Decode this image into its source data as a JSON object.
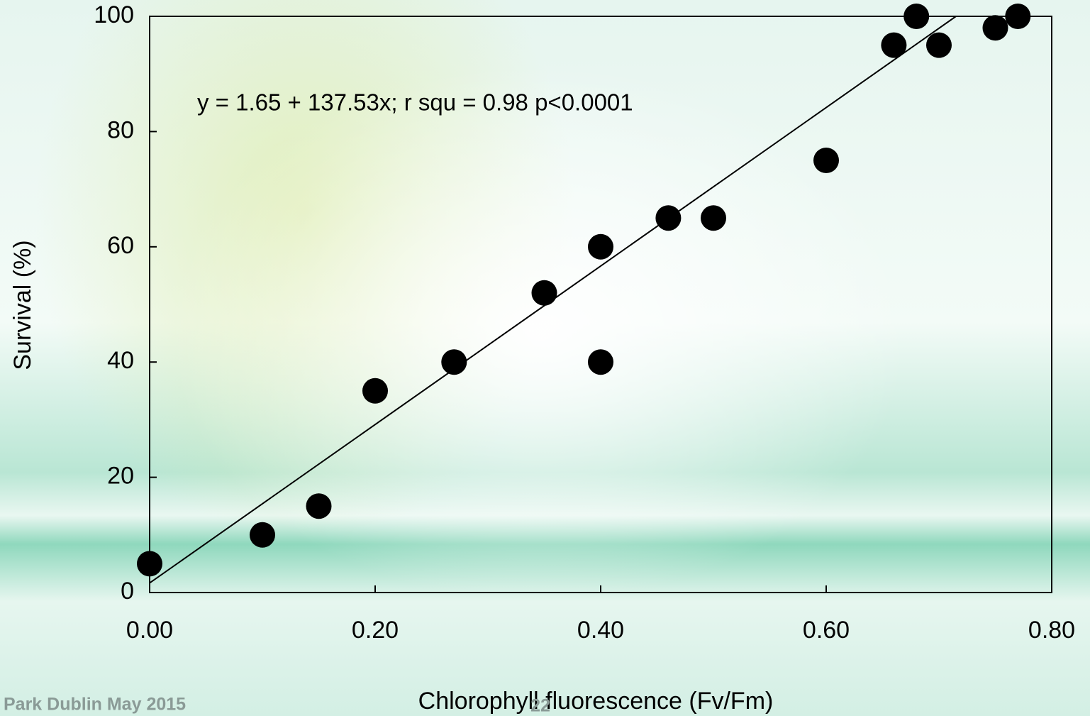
{
  "chart_data": {
    "type": "scatter",
    "x_label": "Chlorophyll fluorescence (Fv/Fm)",
    "y_label": "Survival (%)",
    "annotation": "y = 1.65 + 137.53x; r squ = 0.98  p<0.0001",
    "x": [
      0,
      0.1,
      0.15,
      0.2,
      0.27,
      0.35,
      0.4,
      0.4,
      0.46,
      0.5,
      0.6,
      0.66,
      0.68,
      0.7,
      0.75,
      0.77
    ],
    "values": [
      5,
      10,
      15,
      35,
      40,
      52,
      60,
      40,
      65,
      65,
      75,
      95,
      100,
      95,
      98,
      100
    ],
    "color": "#000000",
    "fit": {
      "intercept": 1.65,
      "slope": 137.53
    },
    "xlim": [
      0,
      0.8
    ],
    "xticks": [
      {
        "value": 0,
        "label": "0.00"
      },
      {
        "value": 0.2,
        "label": "0.20"
      },
      {
        "value": 0.4,
        "label": "0.40"
      },
      {
        "value": 0.6,
        "label": "0.60"
      },
      {
        "value": 0.8,
        "label": "0.80"
      }
    ],
    "ylim": [
      0,
      100
    ],
    "yticks": [
      0,
      20,
      40,
      60,
      80,
      100
    ],
    "grid": false
  },
  "footer": {
    "left": "Park Dublin May 2015",
    "page_number": "22"
  }
}
